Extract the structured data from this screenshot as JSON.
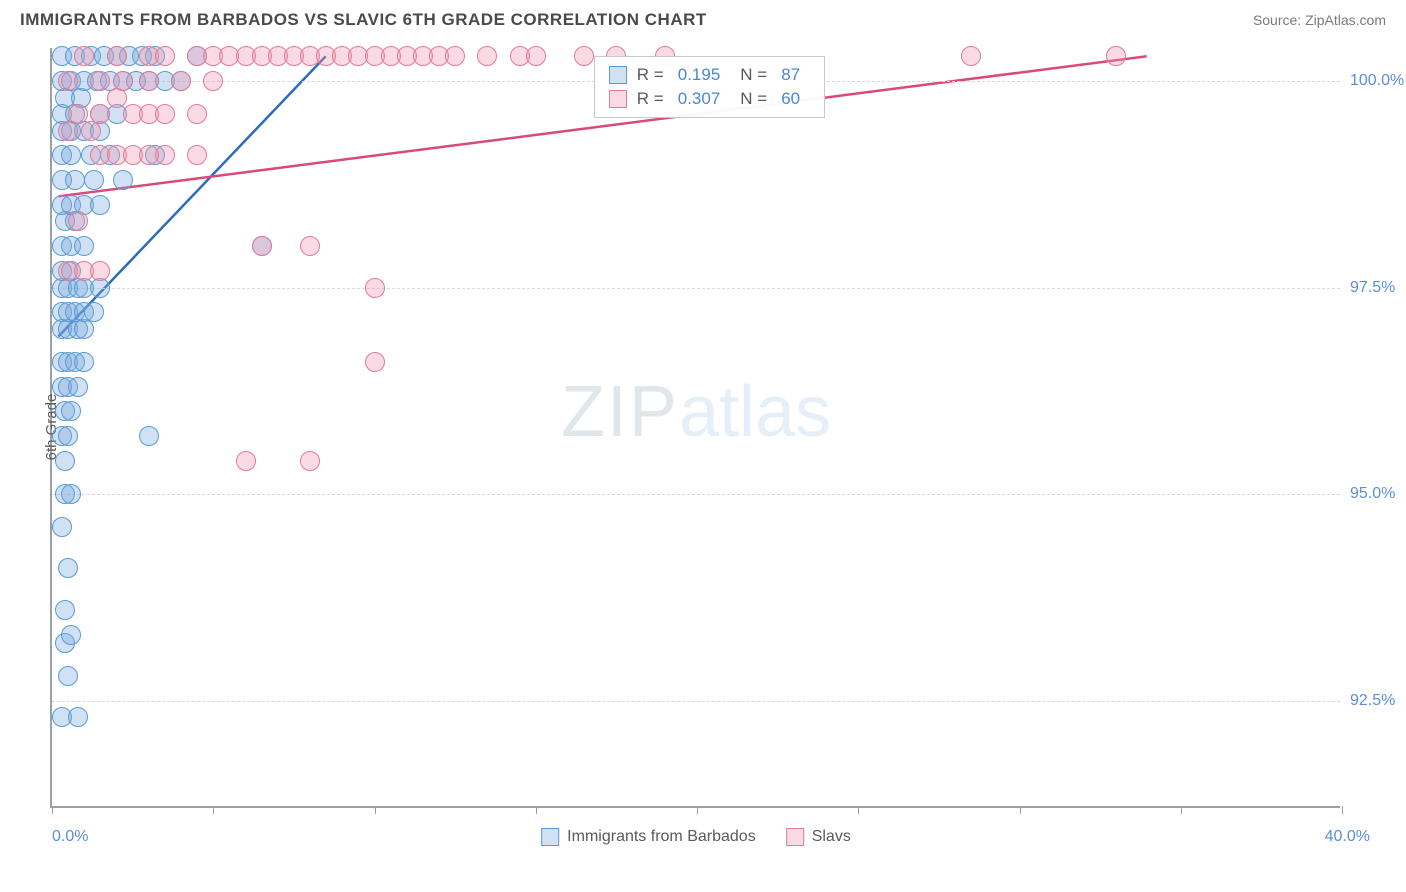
{
  "title": "IMMIGRANTS FROM BARBADOS VS SLAVIC 6TH GRADE CORRELATION CHART",
  "source": "Source: ZipAtlas.com",
  "watermark_zip": "ZIP",
  "watermark_atlas": "atlas",
  "chart": {
    "type": "scatter",
    "background_color": "#ffffff",
    "grid_color": "#d8dadd",
    "axis_color": "#9aa0a6",
    "label_color": "#5a8fd6",
    "text_color": "#5a5a5a",
    "y_axis_title": "6th Grade",
    "xlim": [
      0,
      40
    ],
    "ylim": [
      91.2,
      100.4
    ],
    "x_min_label": "0.0%",
    "x_max_label": "40.0%",
    "x_ticks": [
      0,
      5,
      10,
      15,
      20,
      25,
      30,
      35,
      40
    ],
    "y_ticks": [
      {
        "v": 92.5,
        "label": "92.5%"
      },
      {
        "v": 95.0,
        "label": "95.0%"
      },
      {
        "v": 97.5,
        "label": "97.5%"
      },
      {
        "v": 100.0,
        "label": "100.0%"
      }
    ],
    "marker_radius": 10,
    "marker_stroke_width": 1.5,
    "trend_line_width": 2.5,
    "series": [
      {
        "name": "Immigrants from Barbados",
        "fill": "rgba(120,170,220,0.35)",
        "stroke": "#5a9bd4",
        "legend_R": "0.195",
        "legend_N": "87",
        "trend": {
          "x1": 0.2,
          "y1": 96.9,
          "x2": 8.5,
          "y2": 100.3,
          "color": "#2d6bbf"
        },
        "points": [
          [
            0.3,
            92.3
          ],
          [
            0.8,
            92.3
          ],
          [
            0.5,
            92.8
          ],
          [
            0.4,
            93.2
          ],
          [
            0.6,
            93.3
          ],
          [
            0.4,
            93.6
          ],
          [
            0.5,
            94.1
          ],
          [
            0.3,
            94.6
          ],
          [
            0.4,
            95.0
          ],
          [
            0.6,
            95.0
          ],
          [
            0.4,
            95.4
          ],
          [
            0.3,
            95.7
          ],
          [
            0.5,
            95.7
          ],
          [
            3.0,
            95.7
          ],
          [
            0.4,
            96.0
          ],
          [
            0.6,
            96.0
          ],
          [
            0.3,
            96.3
          ],
          [
            0.5,
            96.3
          ],
          [
            0.8,
            96.3
          ],
          [
            0.3,
            96.6
          ],
          [
            0.5,
            96.6
          ],
          [
            0.7,
            96.6
          ],
          [
            1.0,
            96.6
          ],
          [
            0.3,
            97.0
          ],
          [
            0.5,
            97.0
          ],
          [
            0.8,
            97.0
          ],
          [
            1.0,
            97.0
          ],
          [
            0.3,
            97.2
          ],
          [
            0.5,
            97.2
          ],
          [
            0.7,
            97.2
          ],
          [
            1.0,
            97.2
          ],
          [
            1.3,
            97.2
          ],
          [
            0.3,
            97.5
          ],
          [
            0.5,
            97.5
          ],
          [
            0.8,
            97.5
          ],
          [
            1.0,
            97.5
          ],
          [
            1.5,
            97.5
          ],
          [
            0.3,
            97.7
          ],
          [
            0.6,
            97.7
          ],
          [
            0.3,
            98.0
          ],
          [
            0.6,
            98.0
          ],
          [
            1.0,
            98.0
          ],
          [
            6.5,
            98.0
          ],
          [
            0.4,
            98.3
          ],
          [
            0.7,
            98.3
          ],
          [
            0.3,
            98.5
          ],
          [
            0.6,
            98.5
          ],
          [
            1.0,
            98.5
          ],
          [
            1.5,
            98.5
          ],
          [
            0.3,
            98.8
          ],
          [
            0.7,
            98.8
          ],
          [
            1.3,
            98.8
          ],
          [
            2.2,
            98.8
          ],
          [
            0.3,
            99.1
          ],
          [
            0.6,
            99.1
          ],
          [
            1.2,
            99.1
          ],
          [
            1.8,
            99.1
          ],
          [
            3.2,
            99.1
          ],
          [
            0.3,
            99.4
          ],
          [
            0.6,
            99.4
          ],
          [
            1.0,
            99.4
          ],
          [
            1.5,
            99.4
          ],
          [
            0.3,
            99.6
          ],
          [
            0.7,
            99.6
          ],
          [
            1.5,
            99.6
          ],
          [
            2.0,
            99.6
          ],
          [
            0.4,
            99.8
          ],
          [
            0.9,
            99.8
          ],
          [
            0.3,
            100.0
          ],
          [
            0.6,
            100.0
          ],
          [
            1.0,
            100.0
          ],
          [
            1.4,
            100.0
          ],
          [
            1.8,
            100.0
          ],
          [
            2.2,
            100.0
          ],
          [
            2.6,
            100.0
          ],
          [
            3.0,
            100.0
          ],
          [
            3.5,
            100.0
          ],
          [
            4.0,
            100.0
          ],
          [
            0.3,
            100.3
          ],
          [
            0.7,
            100.3
          ],
          [
            1.2,
            100.3
          ],
          [
            1.6,
            100.3
          ],
          [
            2.0,
            100.3
          ],
          [
            2.4,
            100.3
          ],
          [
            2.8,
            100.3
          ],
          [
            3.2,
            100.3
          ],
          [
            4.5,
            100.3
          ]
        ]
      },
      {
        "name": "Slavs",
        "fill": "rgba(240,150,175,0.35)",
        "stroke": "#e27a9a",
        "legend_R": "0.307",
        "legend_N": "60",
        "trend": {
          "x1": 0.2,
          "y1": 98.6,
          "x2": 34.0,
          "y2": 100.3,
          "color": "#d94a78"
        },
        "points": [
          [
            6.0,
            95.4
          ],
          [
            8.0,
            95.4
          ],
          [
            10.0,
            96.6
          ],
          [
            0.5,
            97.7
          ],
          [
            1.0,
            97.7
          ],
          [
            1.5,
            97.7
          ],
          [
            10.0,
            97.5
          ],
          [
            6.5,
            98.0
          ],
          [
            8.0,
            98.0
          ],
          [
            0.8,
            98.3
          ],
          [
            1.5,
            99.1
          ],
          [
            2.0,
            99.1
          ],
          [
            2.5,
            99.1
          ],
          [
            3.5,
            99.1
          ],
          [
            4.5,
            99.1
          ],
          [
            0.5,
            99.4
          ],
          [
            1.2,
            99.4
          ],
          [
            3.0,
            99.1
          ],
          [
            0.8,
            99.6
          ],
          [
            1.5,
            99.6
          ],
          [
            2.5,
            99.6
          ],
          [
            3.0,
            99.6
          ],
          [
            3.5,
            99.6
          ],
          [
            4.5,
            99.6
          ],
          [
            2.0,
            99.8
          ],
          [
            0.5,
            100.0
          ],
          [
            1.5,
            100.0
          ],
          [
            2.2,
            100.0
          ],
          [
            3.0,
            100.0
          ],
          [
            4.0,
            100.0
          ],
          [
            5.0,
            100.0
          ],
          [
            1.0,
            100.3
          ],
          [
            2.0,
            100.3
          ],
          [
            3.0,
            100.3
          ],
          [
            3.5,
            100.3
          ],
          [
            4.5,
            100.3
          ],
          [
            5.0,
            100.3
          ],
          [
            5.5,
            100.3
          ],
          [
            6.0,
            100.3
          ],
          [
            6.5,
            100.3
          ],
          [
            7.0,
            100.3
          ],
          [
            7.5,
            100.3
          ],
          [
            8.0,
            100.3
          ],
          [
            8.5,
            100.3
          ],
          [
            9.0,
            100.3
          ],
          [
            9.5,
            100.3
          ],
          [
            10.0,
            100.3
          ],
          [
            10.5,
            100.3
          ],
          [
            11.0,
            100.3
          ],
          [
            11.5,
            100.3
          ],
          [
            12.0,
            100.3
          ],
          [
            12.5,
            100.3
          ],
          [
            13.5,
            100.3
          ],
          [
            14.5,
            100.3
          ],
          [
            15.0,
            100.3
          ],
          [
            16.5,
            100.3
          ],
          [
            17.5,
            100.3
          ],
          [
            19.0,
            100.3
          ],
          [
            28.5,
            100.3
          ],
          [
            33.0,
            100.3
          ]
        ]
      }
    ],
    "legend_box": {
      "left_pct": 42,
      "top_pct": 1
    },
    "legend_labels": {
      "R": "R =",
      "N": "N ="
    }
  }
}
